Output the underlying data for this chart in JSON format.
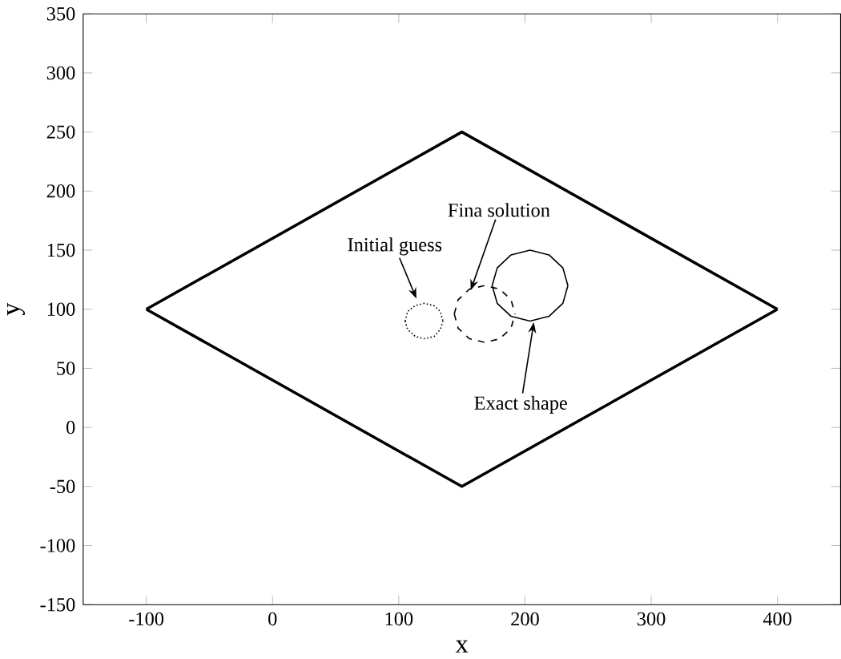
{
  "chart_data": {
    "type": "line",
    "xlabel": "x",
    "ylabel": "y",
    "xlim": [
      -150,
      450
    ],
    "ylim": [
      -150,
      350
    ],
    "xticks": [
      -100,
      0,
      100,
      200,
      300,
      400
    ],
    "yticks": [
      -150,
      -100,
      -50,
      0,
      50,
      100,
      150,
      200,
      250,
      300,
      350
    ],
    "grid": false,
    "marker": "none",
    "series": [
      {
        "color": "#000000",
        "line_style": "solid",
        "x": [
          -100,
          150,
          400
        ],
        "values": [
          100,
          250,
          100
        ]
      },
      {
        "color": "#000000",
        "line_style": "solid",
        "x": [
          -100,
          150,
          400
        ],
        "values": [
          100,
          -50,
          100
        ]
      },
      {
        "color": "#000000",
        "line_style": "dotted",
        "x": [
          105,
          107,
          113,
          120,
          128,
          133,
          135
        ],
        "values": [
          90,
          98,
          103,
          105,
          103,
          98,
          90
        ]
      },
      {
        "color": "#000000",
        "line_style": "dotted",
        "x": [
          105,
          107,
          113,
          120,
          128,
          133,
          135
        ],
        "values": [
          90,
          83,
          77,
          75,
          77,
          83,
          90
        ]
      },
      {
        "color": "#000000",
        "line_style": "dashed",
        "x": [
          144,
          147,
          156,
          168,
          180,
          189,
          192
        ],
        "values": [
          96,
          108,
          117,
          120,
          117,
          108,
          96
        ]
      },
      {
        "color": "#000000",
        "line_style": "dashed",
        "x": [
          144,
          147,
          156,
          168,
          180,
          189,
          192
        ],
        "values": [
          96,
          84,
          75,
          72,
          75,
          84,
          96
        ]
      },
      {
        "color": "#000000",
        "line_style": "solid",
        "x": [
          174,
          178,
          189,
          204,
          219,
          230,
          234
        ],
        "values": [
          120,
          135,
          146,
          150,
          146,
          135,
          120
        ]
      },
      {
        "color": "#000000",
        "line_style": "solid",
        "x": [
          174,
          178,
          189,
          204,
          219,
          230,
          234
        ],
        "values": [
          120,
          105,
          94,
          90,
          94,
          105,
          120
        ]
      }
    ],
    "annotations": [
      {
        "text": "Initial guess",
        "x": 114,
        "y": 109
      },
      {
        "text": "Fina solution",
        "x": 157,
        "y": 116
      },
      {
        "text": "Exact shape",
        "x": 207,
        "y": 89
      }
    ]
  }
}
